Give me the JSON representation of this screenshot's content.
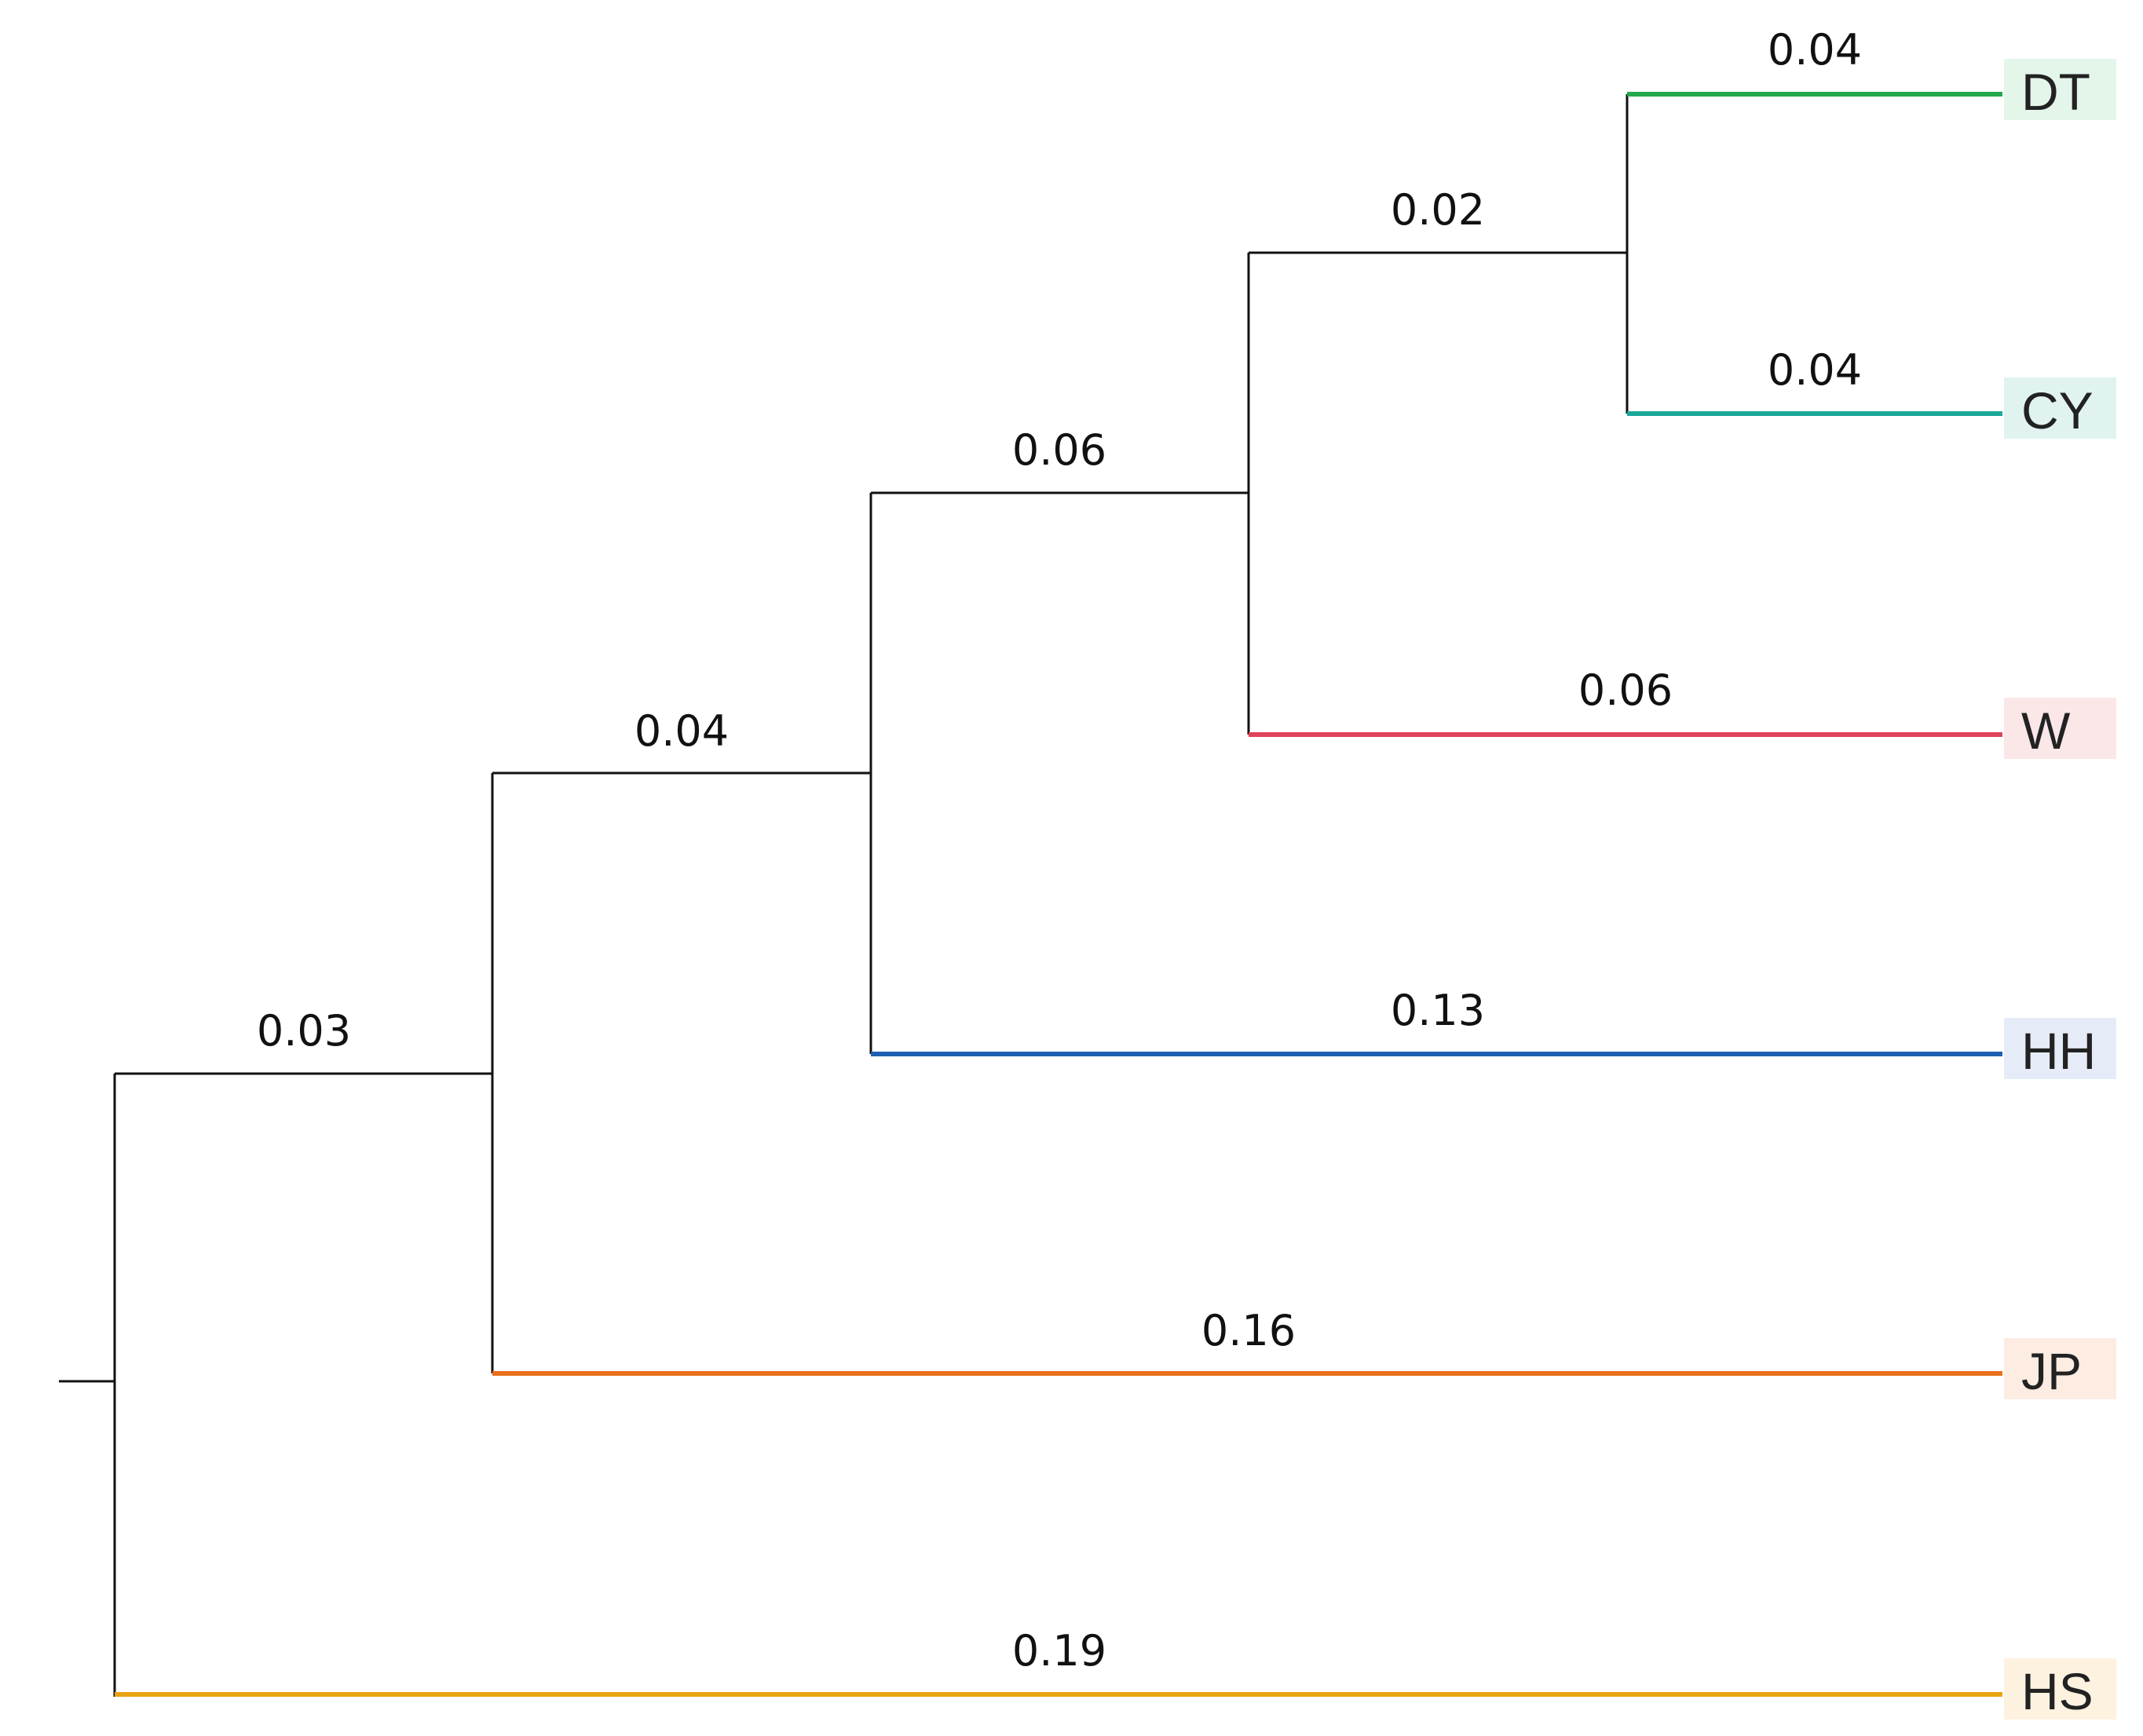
{
  "tree": {
    "leaves": [
      {
        "id": "DT",
        "label": "DT",
        "branch_length": "0.04",
        "color": "#22a84a",
        "bg": "#e4f5ea"
      },
      {
        "id": "CY",
        "label": "CY",
        "branch_length": "0.04",
        "color": "#1aa89a",
        "bg": "#e0f3f0"
      },
      {
        "id": "W",
        "label": "W",
        "branch_length": "0.06",
        "color": "#e0425a",
        "bg": "#fbe6e8"
      },
      {
        "id": "HH",
        "label": "HH",
        "branch_length": "0.13",
        "color": "#1f5fb0",
        "bg": "#e5ecf7"
      },
      {
        "id": "JP",
        "label": "JP",
        "branch_length": "0.16",
        "color": "#e86f1c",
        "bg": "#fcece2"
      },
      {
        "id": "HS",
        "label": "HS",
        "branch_length": "0.19",
        "color": "#e8a311",
        "bg": "#fdf2e0"
      }
    ],
    "internal_branches": [
      {
        "id": "n_dtcy",
        "branch_length": "0.02"
      },
      {
        "id": "n_w",
        "branch_length": "0.06"
      },
      {
        "id": "n_hh",
        "branch_length": "0.04"
      },
      {
        "id": "n_jp",
        "branch_length": "0.03"
      }
    ],
    "internal_color": "#111111"
  }
}
